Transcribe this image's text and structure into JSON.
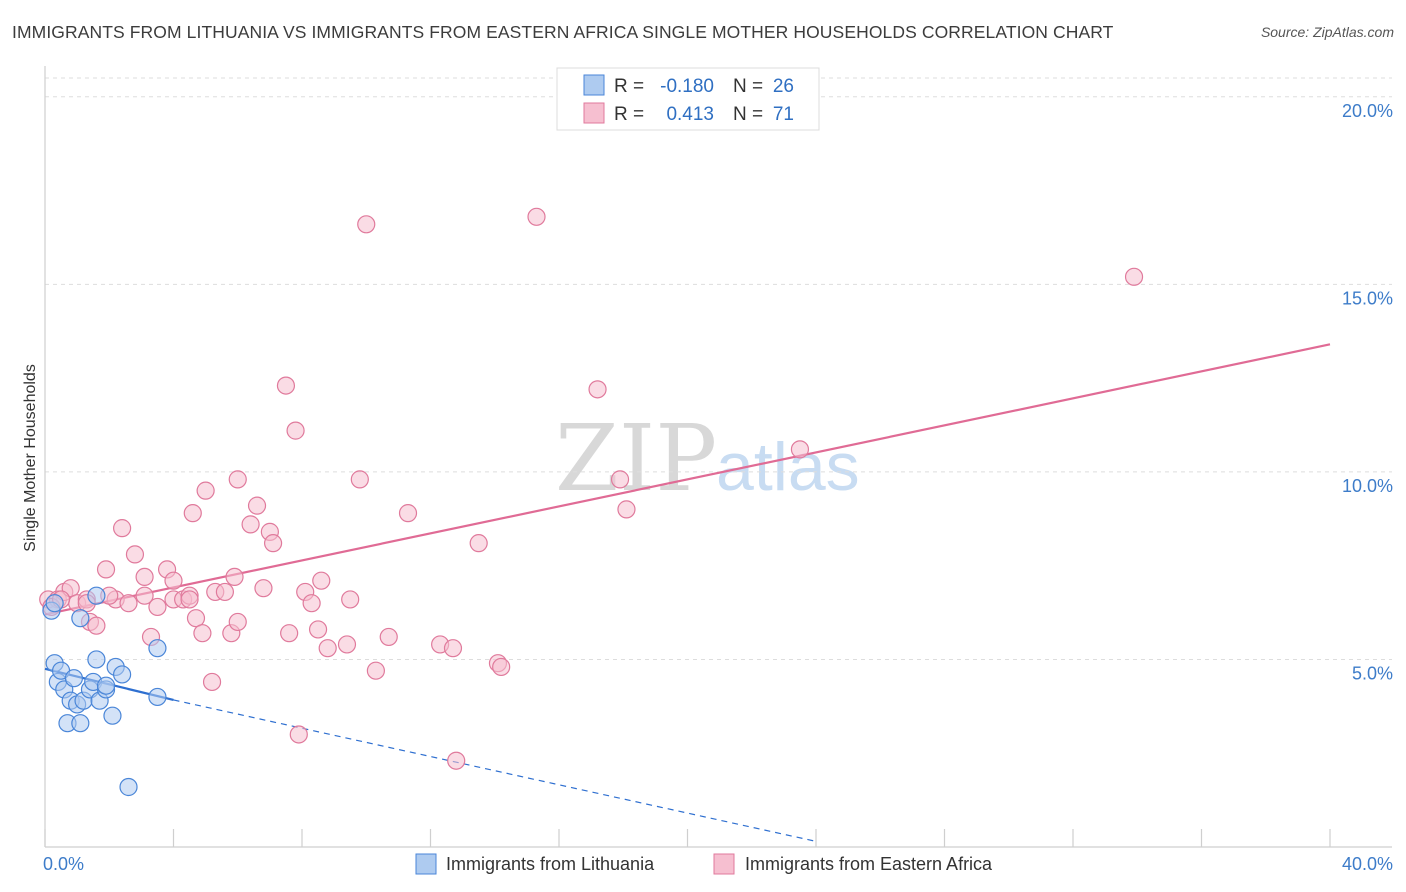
{
  "title": "IMMIGRANTS FROM LITHUANIA VS IMMIGRANTS FROM EASTERN AFRICA SINGLE MOTHER HOUSEHOLDS CORRELATION CHART",
  "source": "Source: ZipAtlas.com",
  "watermark": {
    "zip": "ZIP",
    "atlas": "atlas"
  },
  "colors": {
    "blue_fill": "#aecbf0",
    "blue_stroke": "#4a86d8",
    "blue_line": "#2e6fd0",
    "pink_fill": "#f6bfd0",
    "pink_stroke": "#e07a9c",
    "pink_line": "#e06b95",
    "grid": "#dddddd",
    "tick_label": "#3d7cc9"
  },
  "legend": {
    "r_label": "R =",
    "n_label": "N =",
    "blue": {
      "r": "-0.180",
      "n": "26"
    },
    "pink": {
      "r": "0.413",
      "n": "71"
    }
  },
  "chart_data": {
    "type": "scatter",
    "title": "IMMIGRANTS FROM LITHUANIA VS IMMIGRANTS FROM EASTERN AFRICA SINGLE MOTHER HOUSEHOLDS CORRELATION CHART",
    "xlabel": "",
    "ylabel": "Single Mother Households",
    "xlim": [
      0,
      40
    ],
    "ylim": [
      0,
      20.5
    ],
    "x_tick_labels": [
      "0.0%",
      "40.0%"
    ],
    "y_ticks": [
      5,
      10,
      15,
      20
    ],
    "y_tick_labels": [
      "5.0%",
      "10.0%",
      "15.0%",
      "20.0%"
    ],
    "series": [
      {
        "name": "Immigrants from Lithuania",
        "color": "blue",
        "r": -0.18,
        "n": 26,
        "trend": {
          "x": [
            0,
            4.0
          ],
          "y": [
            4.75,
            3.92
          ],
          "dashed_to": [
            24.0,
            0.15
          ]
        },
        "points": [
          [
            0.2,
            6.3
          ],
          [
            0.3,
            4.9
          ],
          [
            0.4,
            4.4
          ],
          [
            0.5,
            4.7
          ],
          [
            0.6,
            4.2
          ],
          [
            0.7,
            3.3
          ],
          [
            0.8,
            3.9
          ],
          [
            0.9,
            4.5
          ],
          [
            1.0,
            3.8
          ],
          [
            1.1,
            3.3
          ],
          [
            1.1,
            6.1
          ],
          [
            1.2,
            3.9
          ],
          [
            1.4,
            4.2
          ],
          [
            1.5,
            4.4
          ],
          [
            1.6,
            6.7
          ],
          [
            1.6,
            5.0
          ],
          [
            1.7,
            3.9
          ],
          [
            1.9,
            4.2
          ],
          [
            1.9,
            4.3
          ],
          [
            2.1,
            3.5
          ],
          [
            2.2,
            4.8
          ],
          [
            2.4,
            4.6
          ],
          [
            2.6,
            1.6
          ],
          [
            3.5,
            5.3
          ],
          [
            3.5,
            4.0
          ],
          [
            0.3,
            6.5
          ]
        ]
      },
      {
        "name": "Immigrants from Eastern Africa",
        "color": "pink",
        "r": 0.413,
        "n": 71,
        "trend": {
          "x": [
            0,
            40
          ],
          "y": [
            6.2,
            13.4
          ]
        },
        "points": [
          [
            0.1,
            6.6
          ],
          [
            0.4,
            6.6
          ],
          [
            0.6,
            6.8
          ],
          [
            0.8,
            6.9
          ],
          [
            1.0,
            6.5
          ],
          [
            1.3,
            6.6
          ],
          [
            1.4,
            6.0
          ],
          [
            1.6,
            5.9
          ],
          [
            1.9,
            7.4
          ],
          [
            2.2,
            6.6
          ],
          [
            2.4,
            8.5
          ],
          [
            2.6,
            6.5
          ],
          [
            2.8,
            7.8
          ],
          [
            3.1,
            6.7
          ],
          [
            3.1,
            7.2
          ],
          [
            3.3,
            5.6
          ],
          [
            3.5,
            6.4
          ],
          [
            3.8,
            7.4
          ],
          [
            4.0,
            7.1
          ],
          [
            4.0,
            6.6
          ],
          [
            4.3,
            6.6
          ],
          [
            4.5,
            6.7
          ],
          [
            4.6,
            8.9
          ],
          [
            4.7,
            6.1
          ],
          [
            4.9,
            5.7
          ],
          [
            5.0,
            9.5
          ],
          [
            5.2,
            4.4
          ],
          [
            5.3,
            6.8
          ],
          [
            5.6,
            6.8
          ],
          [
            5.8,
            5.7
          ],
          [
            5.9,
            7.2
          ],
          [
            6.0,
            9.8
          ],
          [
            6.0,
            6.0
          ],
          [
            6.4,
            8.6
          ],
          [
            6.6,
            9.1
          ],
          [
            6.8,
            6.9
          ],
          [
            7.0,
            8.4
          ],
          [
            7.1,
            8.1
          ],
          [
            7.5,
            12.3
          ],
          [
            7.6,
            5.7
          ],
          [
            7.8,
            11.1
          ],
          [
            7.9,
            3.0
          ],
          [
            8.1,
            6.8
          ],
          [
            8.3,
            6.5
          ],
          [
            8.5,
            5.8
          ],
          [
            8.6,
            7.1
          ],
          [
            8.8,
            5.3
          ],
          [
            9.4,
            5.4
          ],
          [
            9.5,
            6.6
          ],
          [
            9.8,
            9.8
          ],
          [
            10.0,
            16.6
          ],
          [
            10.3,
            4.7
          ],
          [
            10.7,
            5.6
          ],
          [
            11.3,
            8.9
          ],
          [
            12.3,
            5.4
          ],
          [
            12.7,
            5.3
          ],
          [
            12.8,
            2.3
          ],
          [
            13.5,
            8.1
          ],
          [
            14.1,
            4.9
          ],
          [
            14.2,
            4.8
          ],
          [
            15.3,
            16.8
          ],
          [
            17.2,
            12.2
          ],
          [
            17.9,
            9.8
          ],
          [
            18.1,
            9.0
          ],
          [
            23.5,
            10.6
          ],
          [
            33.9,
            15.2
          ],
          [
            0.2,
            6.4
          ],
          [
            0.5,
            6.6
          ],
          [
            1.3,
            6.5
          ],
          [
            2.0,
            6.7
          ],
          [
            4.5,
            6.6
          ]
        ]
      }
    ],
    "bottom_legend": [
      "Immigrants from Lithuania",
      "Immigrants from Eastern Africa"
    ]
  }
}
